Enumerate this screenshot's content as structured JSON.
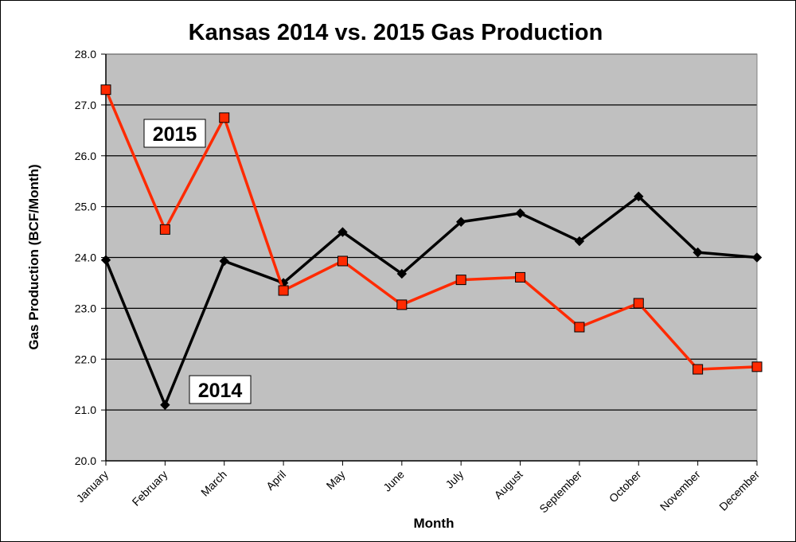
{
  "chart_data": {
    "type": "line",
    "title": "Kansas 2014 vs. 2015 Gas Production",
    "xlabel": "Month",
    "ylabel": "Gas Production (BCF/Month)",
    "ylim": [
      20.0,
      28.0
    ],
    "yticks": [
      "20.0",
      "21.0",
      "22.0",
      "23.0",
      "24.0",
      "25.0",
      "26.0",
      "27.0",
      "28.0"
    ],
    "grid": true,
    "plot_background": "#c0c0c0",
    "categories": [
      "January",
      "February",
      "March",
      "April",
      "May",
      "June",
      "July",
      "August",
      "September",
      "October",
      "November",
      "December"
    ],
    "series": [
      {
        "name": "2014",
        "color": "#000000",
        "marker": "diamond",
        "values": [
          23.95,
          21.1,
          23.93,
          23.5,
          24.5,
          23.68,
          24.7,
          24.87,
          24.32,
          25.2,
          24.1,
          24.0
        ]
      },
      {
        "name": "2015",
        "color": "#ff2a00",
        "marker": "square",
        "values": [
          27.3,
          24.55,
          26.75,
          23.35,
          23.93,
          23.07,
          23.56,
          23.61,
          22.63,
          23.1,
          21.8,
          21.85
        ]
      }
    ]
  }
}
